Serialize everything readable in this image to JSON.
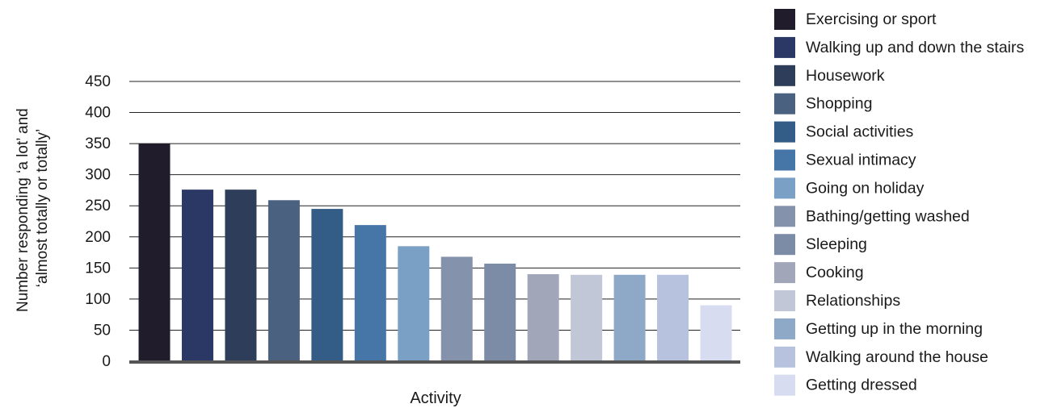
{
  "chart_data": {
    "type": "bar",
    "title": "",
    "xlabel": "Activity",
    "ylabel_lines": [
      "Number responding ‘a lot’ and",
      "‘almost totally or totally’"
    ],
    "ylim": [
      0,
      450
    ],
    "yticks": [
      0,
      50,
      100,
      150,
      200,
      250,
      300,
      350,
      400,
      450
    ],
    "grid": true,
    "legend_position": "right",
    "categories": [
      "Exercising or sport",
      "Walking up and down the stairs",
      "Housework",
      "Shopping",
      "Social activities",
      "Sexual intimacy",
      "Going on holiday",
      "Bathing/getting washed",
      "Sleeping",
      "Cooking",
      "Relationships",
      "Getting up in the morning",
      "Walking around the house",
      "Getting dressed"
    ],
    "values": [
      350,
      276,
      276,
      259,
      245,
      219,
      185,
      168,
      157,
      140,
      139,
      139,
      139,
      90
    ],
    "colors": [
      "#201c2c",
      "#2b3764",
      "#2e3d59",
      "#4a6280",
      "#335d86",
      "#4675a8",
      "#7aa1c5",
      "#8592ac",
      "#7c8ca6",
      "#a1a6b9",
      "#c1c7d6",
      "#8ea8c7",
      "#b7c3de",
      "#d8dcf0"
    ]
  }
}
